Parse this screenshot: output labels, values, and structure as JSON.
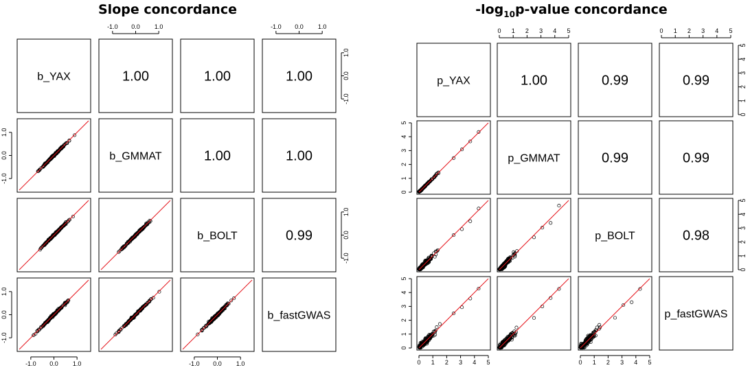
{
  "chart_data": [
    {
      "type": "scatter",
      "title": "Slope concordance",
      "variables": [
        "b_YAX",
        "b_GMMAT",
        "b_BOLT",
        "b_fastGWAS"
      ],
      "correlations": [
        {
          "row": 0,
          "col": 1,
          "value": "1.00"
        },
        {
          "row": 0,
          "col": 2,
          "value": "1.00"
        },
        {
          "row": 0,
          "col": 3,
          "value": "1.00"
        },
        {
          "row": 1,
          "col": 2,
          "value": "1.00"
        },
        {
          "row": 1,
          "col": 3,
          "value": "1.00"
        },
        {
          "row": 2,
          "col": 3,
          "value": "0.99"
        }
      ],
      "axis_range": [
        -1.5,
        1.5
      ],
      "ticks": [
        "-1.0",
        "0.0",
        "1.0"
      ],
      "tick_values": [
        -1.0,
        0.0,
        1.0
      ],
      "fit_line": "y = x",
      "noise": [
        [
          0,
          0.03,
          0.03,
          0.04
        ],
        [
          0.03,
          0,
          0.03,
          0.035
        ],
        [
          0.03,
          0.03,
          0,
          0.05
        ],
        [
          0.04,
          0.035,
          0.05,
          0
        ]
      ],
      "point_color": "#000000",
      "line_color": "#e4141b"
    },
    {
      "type": "scatter",
      "title": "-log",
      "title_subscript": "10",
      "title_suffix": "p-value concordance",
      "variables": [
        "p_YAX",
        "p_GMMAT",
        "p_BOLT",
        "p_fastGWAS"
      ],
      "correlations": [
        {
          "row": 0,
          "col": 1,
          "value": "1.00"
        },
        {
          "row": 0,
          "col": 2,
          "value": "0.99"
        },
        {
          "row": 0,
          "col": 3,
          "value": "0.99"
        },
        {
          "row": 1,
          "col": 2,
          "value": "0.99"
        },
        {
          "row": 1,
          "col": 3,
          "value": "0.99"
        },
        {
          "row": 2,
          "col": 3,
          "value": "0.98"
        }
      ],
      "axis_range": [
        0,
        5
      ],
      "ticks": [
        "0",
        "1",
        "2",
        "3",
        "4",
        "5"
      ],
      "tick_values": [
        0,
        1,
        2,
        3,
        4,
        5
      ],
      "fit_line": "y = x",
      "noise": [
        [
          0,
          0.06,
          0.2,
          0.3
        ],
        [
          0.06,
          0,
          0.2,
          0.3
        ],
        [
          0.2,
          0.2,
          0,
          0.35
        ],
        [
          0.3,
          0.3,
          0.35,
          0
        ]
      ],
      "point_color": "#000000",
      "line_color": "#e4141b"
    }
  ]
}
